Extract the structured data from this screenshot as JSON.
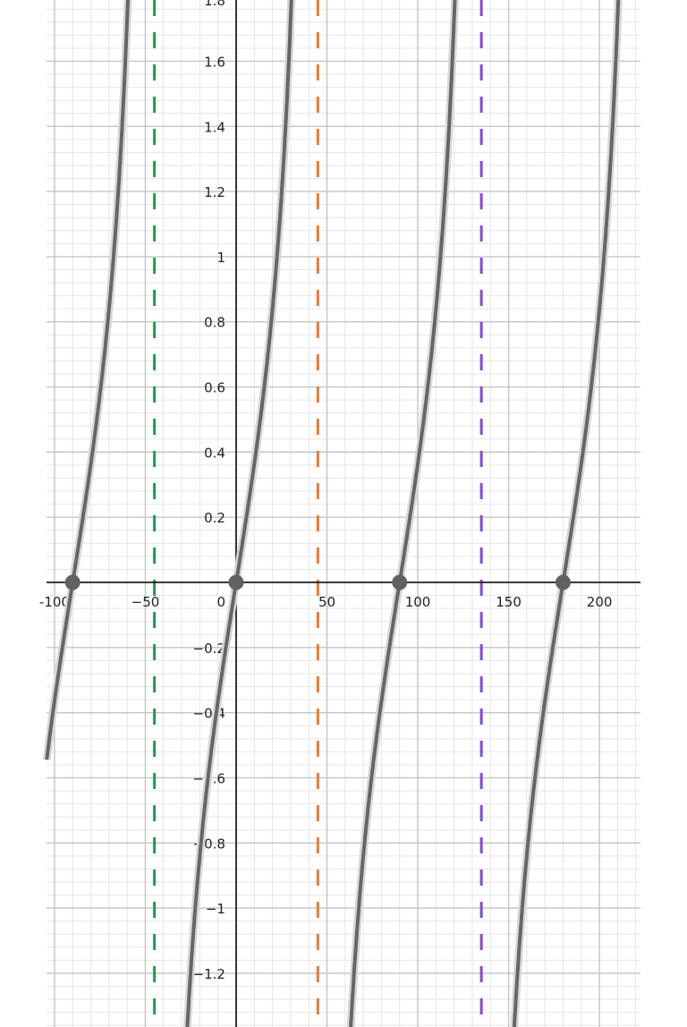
{
  "chart_data": {
    "type": "line",
    "title": "",
    "xlabel": "",
    "ylabel": "",
    "xlim": [
      -104.4,
      222.6
    ],
    "ylim": [
      -1.365,
      1.788
    ],
    "grid": true,
    "x_ticks": [
      "-100",
      "−50",
      "0",
      "50",
      "100",
      "150",
      "200"
    ],
    "x_tick_values": [
      -100,
      -50,
      0,
      50,
      100,
      150,
      200
    ],
    "y_ticks": [
      "1.8",
      "1.6",
      "1.4",
      "1.2",
      "1",
      "0.8",
      "0.6",
      "0.4",
      "0.2",
      "−0.2",
      "−0.4",
      "−0.6",
      "−0.8",
      "−1",
      "−1.2"
    ],
    "y_tick_values": [
      1.8,
      1.6,
      1.4,
      1.2,
      1,
      0.8,
      0.6,
      0.4,
      0.2,
      -0.2,
      -0.4,
      -0.6,
      -0.8,
      -1,
      -1.2
    ],
    "curve": {
      "color": "#666666",
      "period": 90,
      "branch_shape": [
        {
          "dx": -35,
          "y": -5.671
        },
        {
          "dx": -30,
          "y": -1.732
        },
        {
          "dx": -22.5,
          "y": -1
        },
        {
          "dx": -15,
          "y": -0.577
        },
        {
          "dx": -7.5,
          "y": -0.268
        },
        {
          "dx": 0,
          "y": 0
        },
        {
          "dx": 7.5,
          "y": 0.268
        },
        {
          "dx": 15,
          "y": 0.577
        },
        {
          "dx": 22.5,
          "y": 1
        },
        {
          "dx": 30,
          "y": 1.732
        },
        {
          "dx": 35,
          "y": 5.671
        }
      ],
      "branch_centers": [
        -180,
        -90,
        0,
        90,
        180
      ]
    },
    "points": [
      {
        "x": -90,
        "y": 0
      },
      {
        "x": 0,
        "y": 0
      },
      {
        "x": 90,
        "y": 0
      },
      {
        "x": 180,
        "y": 0
      }
    ],
    "point_color": "#616161",
    "asymptotes": [
      {
        "x": -45,
        "color": "#1e9e4a"
      },
      {
        "x": 45,
        "color": "#f07a2a"
      },
      {
        "x": 135,
        "color": "#8c44e0"
      }
    ]
  }
}
